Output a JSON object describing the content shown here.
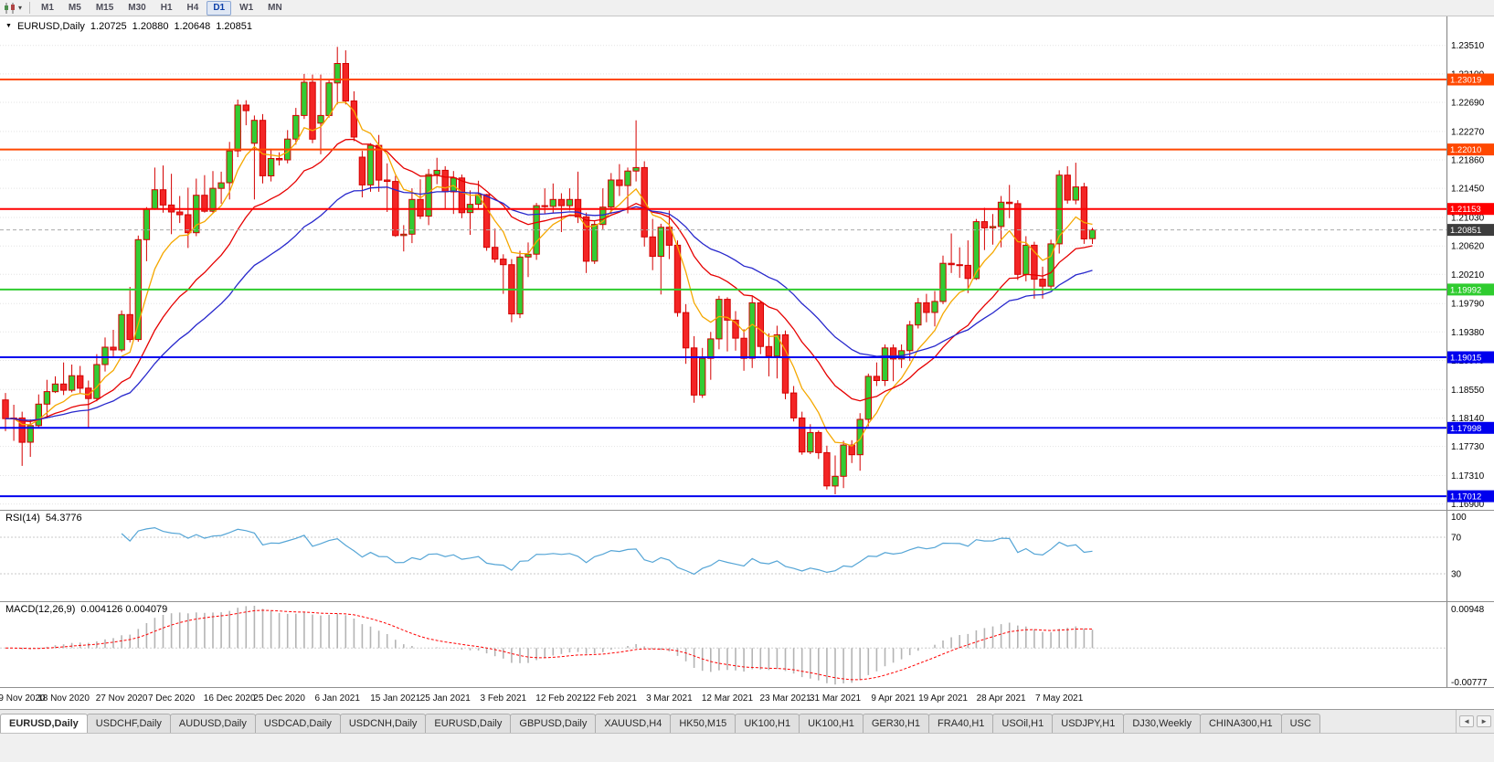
{
  "toolbar": {
    "dropdown_icon": "▾",
    "periods": [
      "M1",
      "M5",
      "M15",
      "M30",
      "H1",
      "H4",
      "D1",
      "W1",
      "MN"
    ],
    "active_period": "D1"
  },
  "chart_header": {
    "collapse_icon": "▼",
    "symbol_title": "EURUSD,Daily",
    "open": "1.20725",
    "high": "1.20880",
    "low": "1.20648",
    "close": "1.20851"
  },
  "chart_data": {
    "type": "candlestick",
    "symbol": "EURUSD",
    "timeframe": "Daily",
    "colors": {
      "bull": "#33cc33",
      "bear": "#f32525",
      "outline": "#d40000",
      "grid": "#e3e3e3",
      "rsi": "#55a5d6",
      "macd_hist": "#b4b4b4",
      "macd_signal": "#ff0000",
      "current": "#3d3d3d"
    },
    "y_axis": {
      "top_price": 1.23928,
      "bottom_price": 1.16816,
      "ticks": [
        "1.23510",
        "1.23100",
        "1.22690",
        "1.22270",
        "1.21860",
        "1.21450",
        "1.21030",
        "1.20620",
        "1.20210",
        "1.19790",
        "1.19380",
        "1.18970",
        "1.18550",
        "1.18140",
        "1.17730",
        "1.17310",
        "1.16900"
      ]
    },
    "x_labels": [
      [
        "9 Nov 2020",
        0
      ],
      [
        "18 Nov 2020",
        7
      ],
      [
        "27 Nov 2020",
        14
      ],
      [
        "7 Dec 2020",
        20
      ],
      [
        "16 Dec 2020",
        27
      ],
      [
        "25 Dec 2020",
        33
      ],
      [
        "6 Jan 2021",
        40
      ],
      [
        "15 Jan 2021",
        47
      ],
      [
        "25 Jan 2021",
        53
      ],
      [
        "3 Feb 2021",
        60
      ],
      [
        "12 Feb 2021",
        67
      ],
      [
        "22 Feb 2021",
        73
      ],
      [
        "3 Mar 2021",
        80
      ],
      [
        "12 Mar 2021",
        87
      ],
      [
        "23 Mar 2021",
        94
      ],
      [
        "31 Mar 2021",
        100
      ],
      [
        "9 Apr 2021",
        107
      ],
      [
        "19 Apr 2021",
        113
      ],
      [
        "28 Apr 2021",
        120
      ],
      [
        "7 May 2021",
        127
      ]
    ],
    "levels": [
      {
        "price": 1.23019,
        "label": "1.23019",
        "color": "#ff4800"
      },
      {
        "price": 1.2201,
        "label": "1.22010",
        "color": "#ff4800"
      },
      {
        "price": 1.21153,
        "label": "1.21153",
        "color": "#ff0000"
      },
      {
        "price": 1.19992,
        "label": "1.19992",
        "color": "#2fcc2f"
      },
      {
        "price": 1.19015,
        "label": "1.19015",
        "color": "#0000ee"
      },
      {
        "price": 1.17998,
        "label": "1.17998",
        "color": "#0000ee"
      },
      {
        "price": 1.17012,
        "label": "1.17012",
        "color": "#0000ee"
      }
    ],
    "current_price": {
      "value": 1.20851,
      "label": "1.20851"
    },
    "moving_averages": [
      {
        "period": 7,
        "color": "#f5a800"
      },
      {
        "period": 18,
        "color": "#e60000"
      },
      {
        "period": 34,
        "color": "#2727cc"
      }
    ],
    "rsi": {
      "name": "RSI(14)",
      "period": 14,
      "value_label": "54.3776",
      "axis_labels": [
        "100",
        "70",
        "30"
      ],
      "guide_levels": [
        70,
        30
      ]
    },
    "macd": {
      "name": "MACD(12,26,9)",
      "fast": 12,
      "slow": 26,
      "signal": 9,
      "values_label": "0.004126 0.004079",
      "axis_max": 0.00948,
      "axis_max_label": "0.00948",
      "axis_min": -0.00777,
      "axis_min_label": "-0.00777"
    },
    "candles": [
      [
        1.184,
        1.185,
        1.1795,
        1.1813
      ],
      [
        1.1813,
        1.1833,
        1.1781,
        1.1814
      ],
      [
        1.1814,
        1.1823,
        1.1745,
        1.1779
      ],
      [
        1.1779,
        1.1812,
        1.1758,
        1.1803
      ],
      [
        1.1803,
        1.1848,
        1.18,
        1.1834
      ],
      [
        1.1834,
        1.1869,
        1.1815,
        1.1852
      ],
      [
        1.1852,
        1.1874,
        1.185,
        1.1863
      ],
      [
        1.1863,
        1.1894,
        1.1847,
        1.1854
      ],
      [
        1.1854,
        1.1891,
        1.1851,
        1.1875
      ],
      [
        1.1875,
        1.1889,
        1.1849,
        1.1857
      ],
      [
        1.1857,
        1.1868,
        1.18,
        1.1842
      ],
      [
        1.1842,
        1.1906,
        1.1838,
        1.1891
      ],
      [
        1.1891,
        1.193,
        1.1881,
        1.1916
      ],
      [
        1.1916,
        1.1941,
        1.1902,
        1.1912
      ],
      [
        1.1912,
        1.1969,
        1.1909,
        1.1963
      ],
      [
        1.1963,
        1.2003,
        1.1923,
        1.1927
      ],
      [
        1.1927,
        1.2077,
        1.1924,
        1.2071
      ],
      [
        1.2071,
        1.2118,
        1.204,
        1.2115
      ],
      [
        1.2115,
        1.2175,
        1.2114,
        1.2143
      ],
      [
        1.2143,
        1.2178,
        1.211,
        1.2121
      ],
      [
        1.2121,
        1.2166,
        1.2079,
        1.2111
      ],
      [
        1.2111,
        1.2134,
        1.2095,
        1.2107
      ],
      [
        1.2107,
        1.2146,
        1.2059,
        1.2081
      ],
      [
        1.2081,
        1.2159,
        1.2076,
        1.2135
      ],
      [
        1.2135,
        1.2164,
        1.211,
        1.2112
      ],
      [
        1.2112,
        1.217,
        1.211,
        1.2145
      ],
      [
        1.2145,
        1.2169,
        1.2123,
        1.2153
      ],
      [
        1.2153,
        1.2212,
        1.2129,
        1.2199
      ],
      [
        1.2199,
        1.2273,
        1.219,
        1.2265
      ],
      [
        1.2265,
        1.2272,
        1.2236,
        1.2257
      ],
      [
        1.221,
        1.225,
        1.2129,
        1.2243
      ],
      [
        1.2243,
        1.2252,
        1.2152,
        1.2163
      ],
      [
        1.2163,
        1.2202,
        1.2155,
        1.2188
      ],
      [
        1.2188,
        1.2197,
        1.2178,
        1.2186
      ],
      [
        1.2186,
        1.2229,
        1.2181,
        1.2216
      ],
      [
        1.2216,
        1.2261,
        1.2208,
        1.225
      ],
      [
        1.225,
        1.231,
        1.2245,
        1.2298
      ],
      [
        1.2298,
        1.2309,
        1.221,
        1.2216
      ],
      [
        1.2239,
        1.2309,
        1.2194,
        1.225
      ],
      [
        1.225,
        1.2301,
        1.2247,
        1.2297
      ],
      [
        1.2297,
        1.2349,
        1.2266,
        1.2325
      ],
      [
        1.2325,
        1.2344,
        1.2266,
        1.2271
      ],
      [
        1.2271,
        1.2285,
        1.2213,
        1.2219
      ],
      [
        1.219,
        1.2199,
        1.2132,
        1.215
      ],
      [
        1.215,
        1.221,
        1.214,
        1.2207
      ],
      [
        1.2207,
        1.2222,
        1.214,
        1.2157
      ],
      [
        1.2157,
        1.2181,
        1.2111,
        1.2155
      ],
      [
        1.2155,
        1.2163,
        1.2075,
        1.2077
      ],
      [
        1.2077,
        1.2092,
        1.2054,
        1.2079
      ],
      [
        1.2079,
        1.2145,
        1.2066,
        1.2129
      ],
      [
        1.2129,
        1.2158,
        1.2101,
        1.2105
      ],
      [
        1.2105,
        1.2173,
        1.2092,
        1.2165
      ],
      [
        1.2165,
        1.2189,
        1.2151,
        1.2171
      ],
      [
        1.2171,
        1.2177,
        1.2116,
        1.214
      ],
      [
        1.214,
        1.217,
        1.2108,
        1.216
      ],
      [
        1.216,
        1.2165,
        1.2102,
        1.211
      ],
      [
        1.211,
        1.2142,
        1.2078,
        1.2122
      ],
      [
        1.2122,
        1.2156,
        1.2115,
        1.2136
      ],
      [
        1.2136,
        1.2137,
        1.2055,
        1.206
      ],
      [
        1.206,
        1.2087,
        1.2038,
        1.2043
      ],
      [
        1.2043,
        1.205,
        1.1993,
        1.2035
      ],
      [
        1.2035,
        1.2043,
        1.1952,
        1.1964
      ],
      [
        1.1964,
        1.2055,
        1.1958,
        1.2046
      ],
      [
        1.2046,
        1.2067,
        1.2017,
        1.205
      ],
      [
        1.205,
        1.2124,
        1.2042,
        1.212
      ],
      [
        1.212,
        1.2145,
        1.2108,
        1.2119
      ],
      [
        1.2119,
        1.2152,
        1.211,
        1.2129
      ],
      [
        1.2129,
        1.2138,
        1.2082,
        1.212
      ],
      [
        1.212,
        1.2145,
        1.2113,
        1.2129
      ],
      [
        1.2129,
        1.2169,
        1.2095,
        1.2104
      ],
      [
        1.2104,
        1.211,
        1.2023,
        1.204
      ],
      [
        1.204,
        1.2098,
        1.2036,
        1.2093
      ],
      [
        1.2093,
        1.2145,
        1.2086,
        1.2118
      ],
      [
        1.2118,
        1.2167,
        1.2108,
        1.2157
      ],
      [
        1.2157,
        1.218,
        1.2134,
        1.2149
      ],
      [
        1.2149,
        1.2175,
        1.2109,
        1.217
      ],
      [
        1.217,
        1.2243,
        1.2155,
        1.2175
      ],
      [
        1.2175,
        1.2184,
        1.2061,
        1.2075
      ],
      [
        1.2075,
        1.2101,
        1.2027,
        1.2047
      ],
      [
        1.2047,
        1.2094,
        1.1992,
        1.2089
      ],
      [
        1.2089,
        1.2113,
        1.2043,
        1.2063
      ],
      [
        1.2063,
        1.207,
        1.196,
        1.1966
      ],
      [
        1.1966,
        1.1978,
        1.1892,
        1.1915
      ],
      [
        1.1915,
        1.1932,
        1.1836,
        1.1847
      ],
      [
        1.1847,
        1.1915,
        1.1843,
        1.19
      ],
      [
        1.19,
        1.1938,
        1.1869,
        1.1928
      ],
      [
        1.1928,
        1.199,
        1.1913,
        1.1985
      ],
      [
        1.1985,
        1.1988,
        1.191,
        1.1955
      ],
      [
        1.1955,
        1.1968,
        1.1911,
        1.1929
      ],
      [
        1.1929,
        1.1942,
        1.1882,
        1.19
      ],
      [
        1.19,
        1.1989,
        1.1886,
        1.198
      ],
      [
        1.198,
        1.1983,
        1.1906,
        1.1917
      ],
      [
        1.1917,
        1.1936,
        1.1874,
        1.1903
      ],
      [
        1.1903,
        1.1947,
        1.1871,
        1.1934
      ],
      [
        1.1934,
        1.194,
        1.1841,
        1.185
      ],
      [
        1.185,
        1.186,
        1.1809,
        1.1814
      ],
      [
        1.1814,
        1.1823,
        1.1761,
        1.1765
      ],
      [
        1.1765,
        1.1805,
        1.1762,
        1.1793
      ],
      [
        1.1793,
        1.1796,
        1.1755,
        1.1764
      ],
      [
        1.1764,
        1.1774,
        1.1711,
        1.1716
      ],
      [
        1.1716,
        1.176,
        1.1704,
        1.173
      ],
      [
        1.173,
        1.1781,
        1.1713,
        1.1775
      ],
      [
        1.1775,
        1.1782,
        1.1749,
        1.1761
      ],
      [
        1.1761,
        1.1821,
        1.1738,
        1.1812
      ],
      [
        1.1812,
        1.1878,
        1.1802,
        1.1874
      ],
      [
        1.1874,
        1.1894,
        1.186,
        1.1868
      ],
      [
        1.1868,
        1.192,
        1.186,
        1.1915
      ],
      [
        1.1915,
        1.192,
        1.1867,
        1.1899
      ],
      [
        1.1899,
        1.192,
        1.1886,
        1.1911
      ],
      [
        1.1911,
        1.1954,
        1.1896,
        1.1948
      ],
      [
        1.1948,
        1.1987,
        1.1943,
        1.198
      ],
      [
        1.198,
        1.1993,
        1.1952,
        1.1966
      ],
      [
        1.1966,
        1.1997,
        1.1946,
        1.1982
      ],
      [
        1.1982,
        1.2048,
        1.1978,
        1.2037
      ],
      [
        1.2037,
        1.208,
        1.2023,
        1.2035
      ],
      [
        1.2035,
        1.206,
        1.2016,
        1.2034
      ],
      [
        1.2034,
        1.207,
        1.1994,
        1.2015
      ],
      [
        1.2015,
        1.2101,
        1.2013,
        1.2097
      ],
      [
        1.2097,
        1.2117,
        1.2056,
        1.2088
      ],
      [
        1.2088,
        1.2108,
        1.2064,
        1.209
      ],
      [
        1.209,
        1.2134,
        1.206,
        1.2125
      ],
      [
        1.2125,
        1.215,
        1.2102,
        1.2123
      ],
      [
        1.2123,
        1.2128,
        1.2013,
        1.2021
      ],
      [
        1.2021,
        1.2076,
        1.2011,
        1.2063
      ],
      [
        1.2063,
        1.2068,
        1.1986,
        1.2014
      ],
      [
        1.2014,
        1.2032,
        1.1986,
        1.2004
      ],
      [
        1.2004,
        1.2071,
        1.2,
        1.2065
      ],
      [
        1.2065,
        1.2171,
        1.2051,
        1.2164
      ],
      [
        1.2164,
        1.2177,
        1.2123,
        1.2128
      ],
      [
        1.2128,
        1.2182,
        1.2122,
        1.2147
      ],
      [
        1.2147,
        1.2153,
        1.2065,
        1.2072
      ],
      [
        1.20725,
        1.2088,
        1.20648,
        1.20851
      ]
    ]
  },
  "tabbar": {
    "scroll_left_icon": "◄",
    "scroll_right_icon": "►",
    "active_index": 0,
    "tabs": [
      "EURUSD,Daily",
      "USDCHF,Daily",
      "AUDUSD,Daily",
      "USDCAD,Daily",
      "USDCNH,Daily",
      "EURUSD,Daily",
      "GBPUSD,Daily",
      "XAUUSD,H4",
      "HK50,M15",
      "UK100,H1",
      "UK100,H1",
      "GER30,H1",
      "FRA40,H1",
      "USOil,H1",
      "USDJPY,H1",
      "DJ30,Weekly",
      "CHINA300,H1",
      "USC"
    ]
  }
}
